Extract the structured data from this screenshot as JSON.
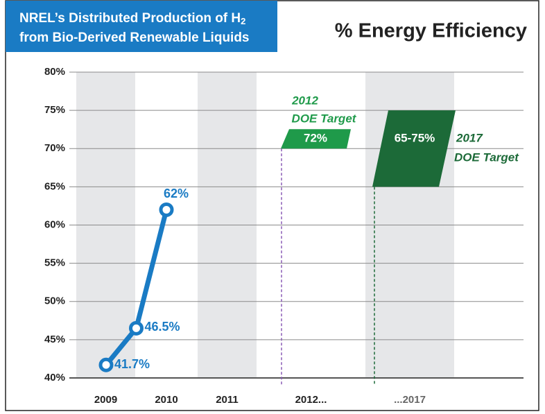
{
  "chart_data": {
    "type": "line",
    "title": [
      "NREL’s Distributed Production of H",
      "2",
      "from Bio-Derived Renewable Liquids"
    ],
    "subtitle": "% Energy Efficiency",
    "categories": [
      "2009",
      "2010",
      "2011",
      "2012...",
      "...2017"
    ],
    "series": [
      {
        "name": "NREL",
        "color": "#1a7bc4",
        "x": [
          2009,
          2009.5,
          2010
        ],
        "values": [
          41.7,
          46.5,
          62
        ],
        "value_labels": [
          "41.7%",
          "46.5%",
          "62%"
        ]
      }
    ],
    "ylim": [
      40,
      80
    ],
    "yticks": [
      {
        "value": 40,
        "label": "40%"
      },
      {
        "value": 45,
        "label": "45%"
      },
      {
        "value": 50,
        "label": "50%"
      },
      {
        "value": 55,
        "label": "55%"
      },
      {
        "value": 60,
        "label": "60%"
      },
      {
        "value": 65,
        "label": "65%"
      },
      {
        "value": 70,
        "label": "70%"
      },
      {
        "value": 75,
        "label": "75%"
      },
      {
        "value": 80,
        "label": "80%"
      }
    ],
    "grid": true,
    "targets": [
      {
        "year": "2012",
        "label": "DOE Target",
        "value": 72,
        "value_label": "72%",
        "color": "#1f9a4a"
      },
      {
        "year": "2017",
        "label": "DOE Target",
        "low": 65,
        "high": 75,
        "value_label": "65-75%",
        "color": "#1c6a38"
      }
    ]
  }
}
